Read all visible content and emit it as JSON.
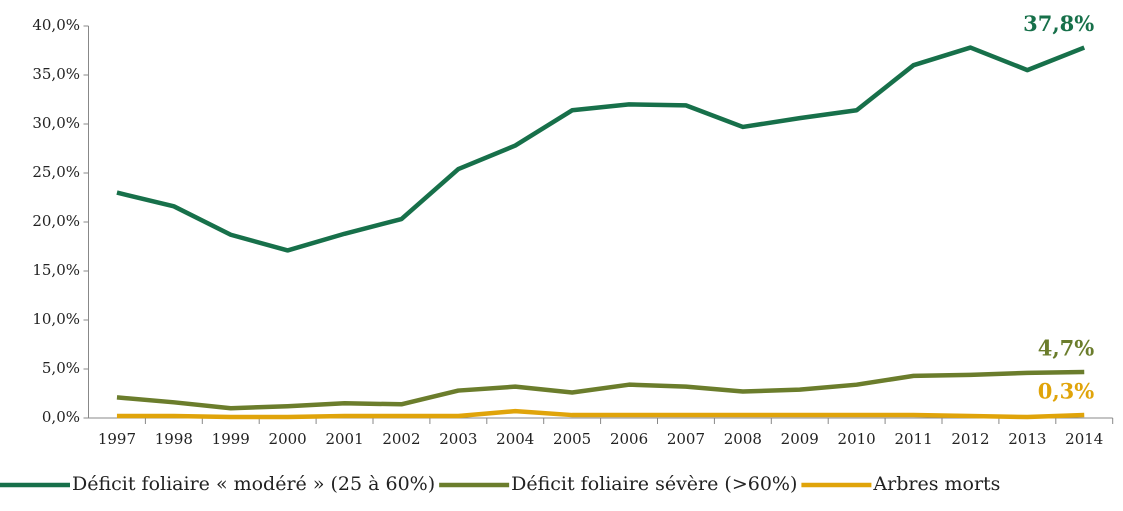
{
  "chart_data": {
    "type": "line",
    "categories": [
      "1997",
      "1998",
      "1999",
      "2000",
      "2001",
      "2002",
      "2003",
      "2004",
      "2005",
      "2006",
      "2007",
      "2008",
      "2009",
      "2010",
      "2011",
      "2012",
      "2013",
      "2014"
    ],
    "series": [
      {
        "name": "Déficit foliaire « modéré » (25 à 60%)",
        "color": "#17704a",
        "values": [
          23.0,
          21.6,
          18.7,
          17.1,
          18.8,
          20.3,
          25.4,
          27.8,
          31.4,
          32.0,
          31.9,
          29.7,
          30.6,
          31.4,
          36.0,
          37.8,
          35.5,
          37.8
        ],
        "value_labels": [
          null,
          null,
          null,
          null,
          null,
          null,
          null,
          null,
          null,
          null,
          null,
          null,
          null,
          null,
          null,
          null,
          null,
          "37,8%"
        ]
      },
      {
        "name": "Déficit foliaire sévère (>60%)",
        "color": "#6b7d2c",
        "values": [
          2.1,
          1.6,
          1.0,
          1.2,
          1.5,
          1.4,
          2.8,
          3.2,
          2.6,
          3.4,
          3.2,
          2.7,
          2.9,
          3.4,
          4.3,
          4.4,
          4.6,
          4.7
        ],
        "value_labels": [
          null,
          null,
          null,
          null,
          null,
          null,
          null,
          null,
          null,
          null,
          null,
          null,
          null,
          null,
          null,
          null,
          null,
          "4,7%"
        ]
      },
      {
        "name": "Arbres morts",
        "color": "#e0a40a",
        "values": [
          0.2,
          0.2,
          0.1,
          0.1,
          0.2,
          0.2,
          0.2,
          0.7,
          0.3,
          0.3,
          0.3,
          0.3,
          0.3,
          0.3,
          0.3,
          0.2,
          0.1,
          0.3
        ],
        "value_labels": [
          null,
          null,
          null,
          null,
          null,
          null,
          null,
          null,
          null,
          null,
          null,
          null,
          null,
          null,
          null,
          null,
          null,
          "0,3%"
        ]
      }
    ],
    "ylim": [
      0,
      40
    ],
    "yticks": [
      {
        "value": 0,
        "label": "0,0%"
      },
      {
        "value": 5,
        "label": "5,0%"
      },
      {
        "value": 10,
        "label": "10,0%"
      },
      {
        "value": 15,
        "label": "15,0%"
      },
      {
        "value": 20,
        "label": "20,0%"
      },
      {
        "value": 25,
        "label": "25,0%"
      },
      {
        "value": 30,
        "label": "30,0%"
      },
      {
        "value": 35,
        "label": "35,0%"
      },
      {
        "value": 40,
        "label": "40,0%"
      }
    ],
    "grid": false,
    "legend": "bottom"
  }
}
